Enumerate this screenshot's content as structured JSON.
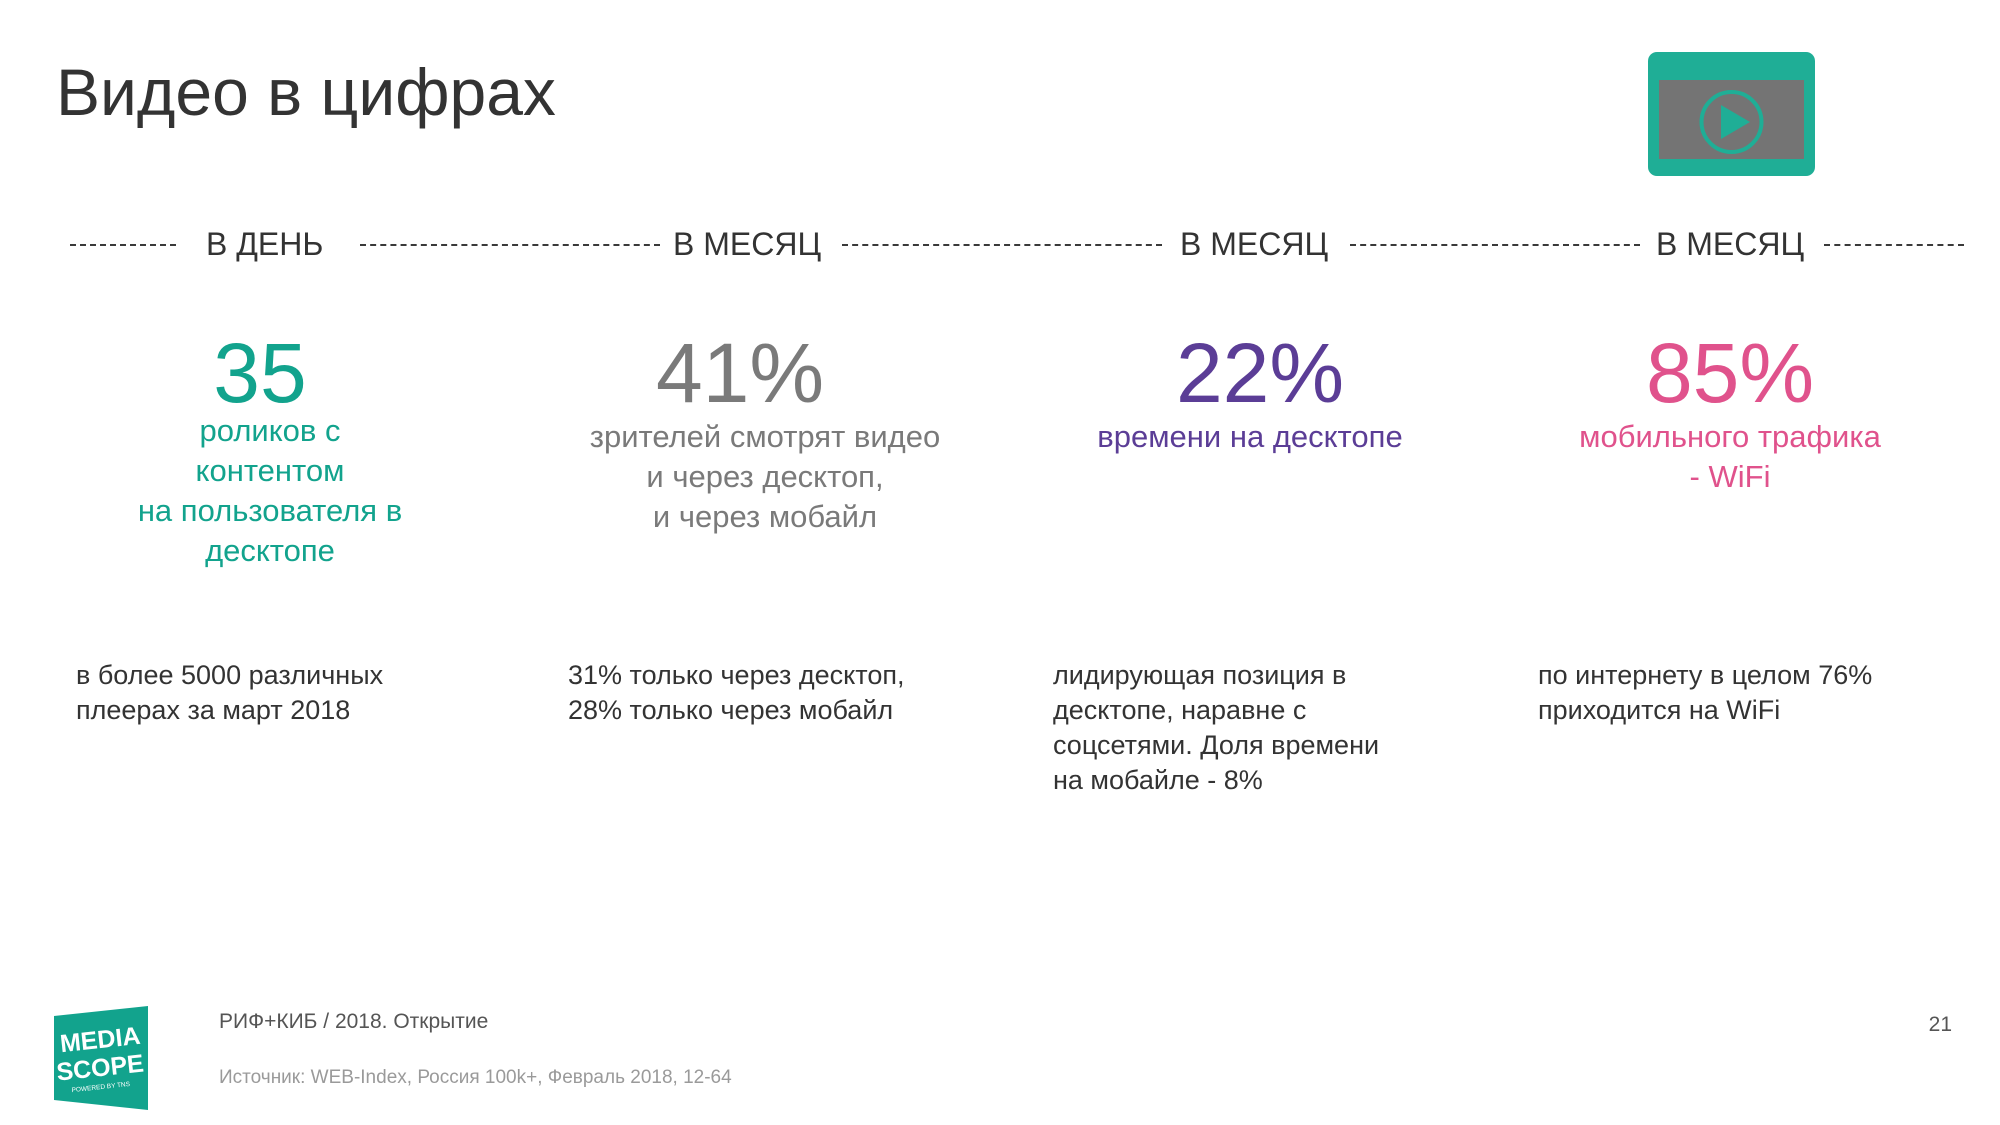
{
  "slide": {
    "title": "Видео в цифрах",
    "page_number": "21"
  },
  "colors": {
    "teal": "#12a38d",
    "gray": "#7a7a7a",
    "purple": "#5b3d96",
    "pink": "#e0528c",
    "text_dark": "#333333",
    "icon_bg": "#1fae96",
    "icon_screen": "#747474"
  },
  "periods": [
    "В ДЕНЬ",
    "В МЕСЯЦ",
    "В МЕСЯЦ",
    "В МЕСЯЦ"
  ],
  "stats": [
    {
      "value": "35",
      "caption": [
        "роликов с",
        "контентом",
        "на пользователя в",
        "десктопе"
      ],
      "note": [
        "в более 5000 различных",
        "плеерах за март 2018"
      ]
    },
    {
      "value": "41%",
      "caption": [
        "зрителей смотрят видео",
        "и через десктоп,",
        "и через мобайл"
      ],
      "note": [
        "31% только через десктоп,",
        "28% только через мобайл"
      ]
    },
    {
      "value": "22%",
      "caption": [
        "времени на десктопе"
      ],
      "note": [
        "лидирующая позиция в",
        "десктопе, наравне с",
        "соцсетями. Доля времени",
        "на мобайле - 8%"
      ]
    },
    {
      "value": "85%",
      "caption": [
        "мобильного трафика",
        "- WiFi"
      ],
      "note": [
        "по интернету в целом 76%",
        "приходится на WiFi"
      ]
    }
  ],
  "footer": {
    "event": "РИФ+КИБ / 2018. Открытие",
    "source": "Источник: WEB-Index, Россия 100k+, Февраль 2018, 12-64"
  },
  "logo": {
    "line1": "MEDIA",
    "line2": "SCOPE",
    "line3": "POWERED BY TNS"
  },
  "icons": {
    "video": "play-video-icon"
  }
}
